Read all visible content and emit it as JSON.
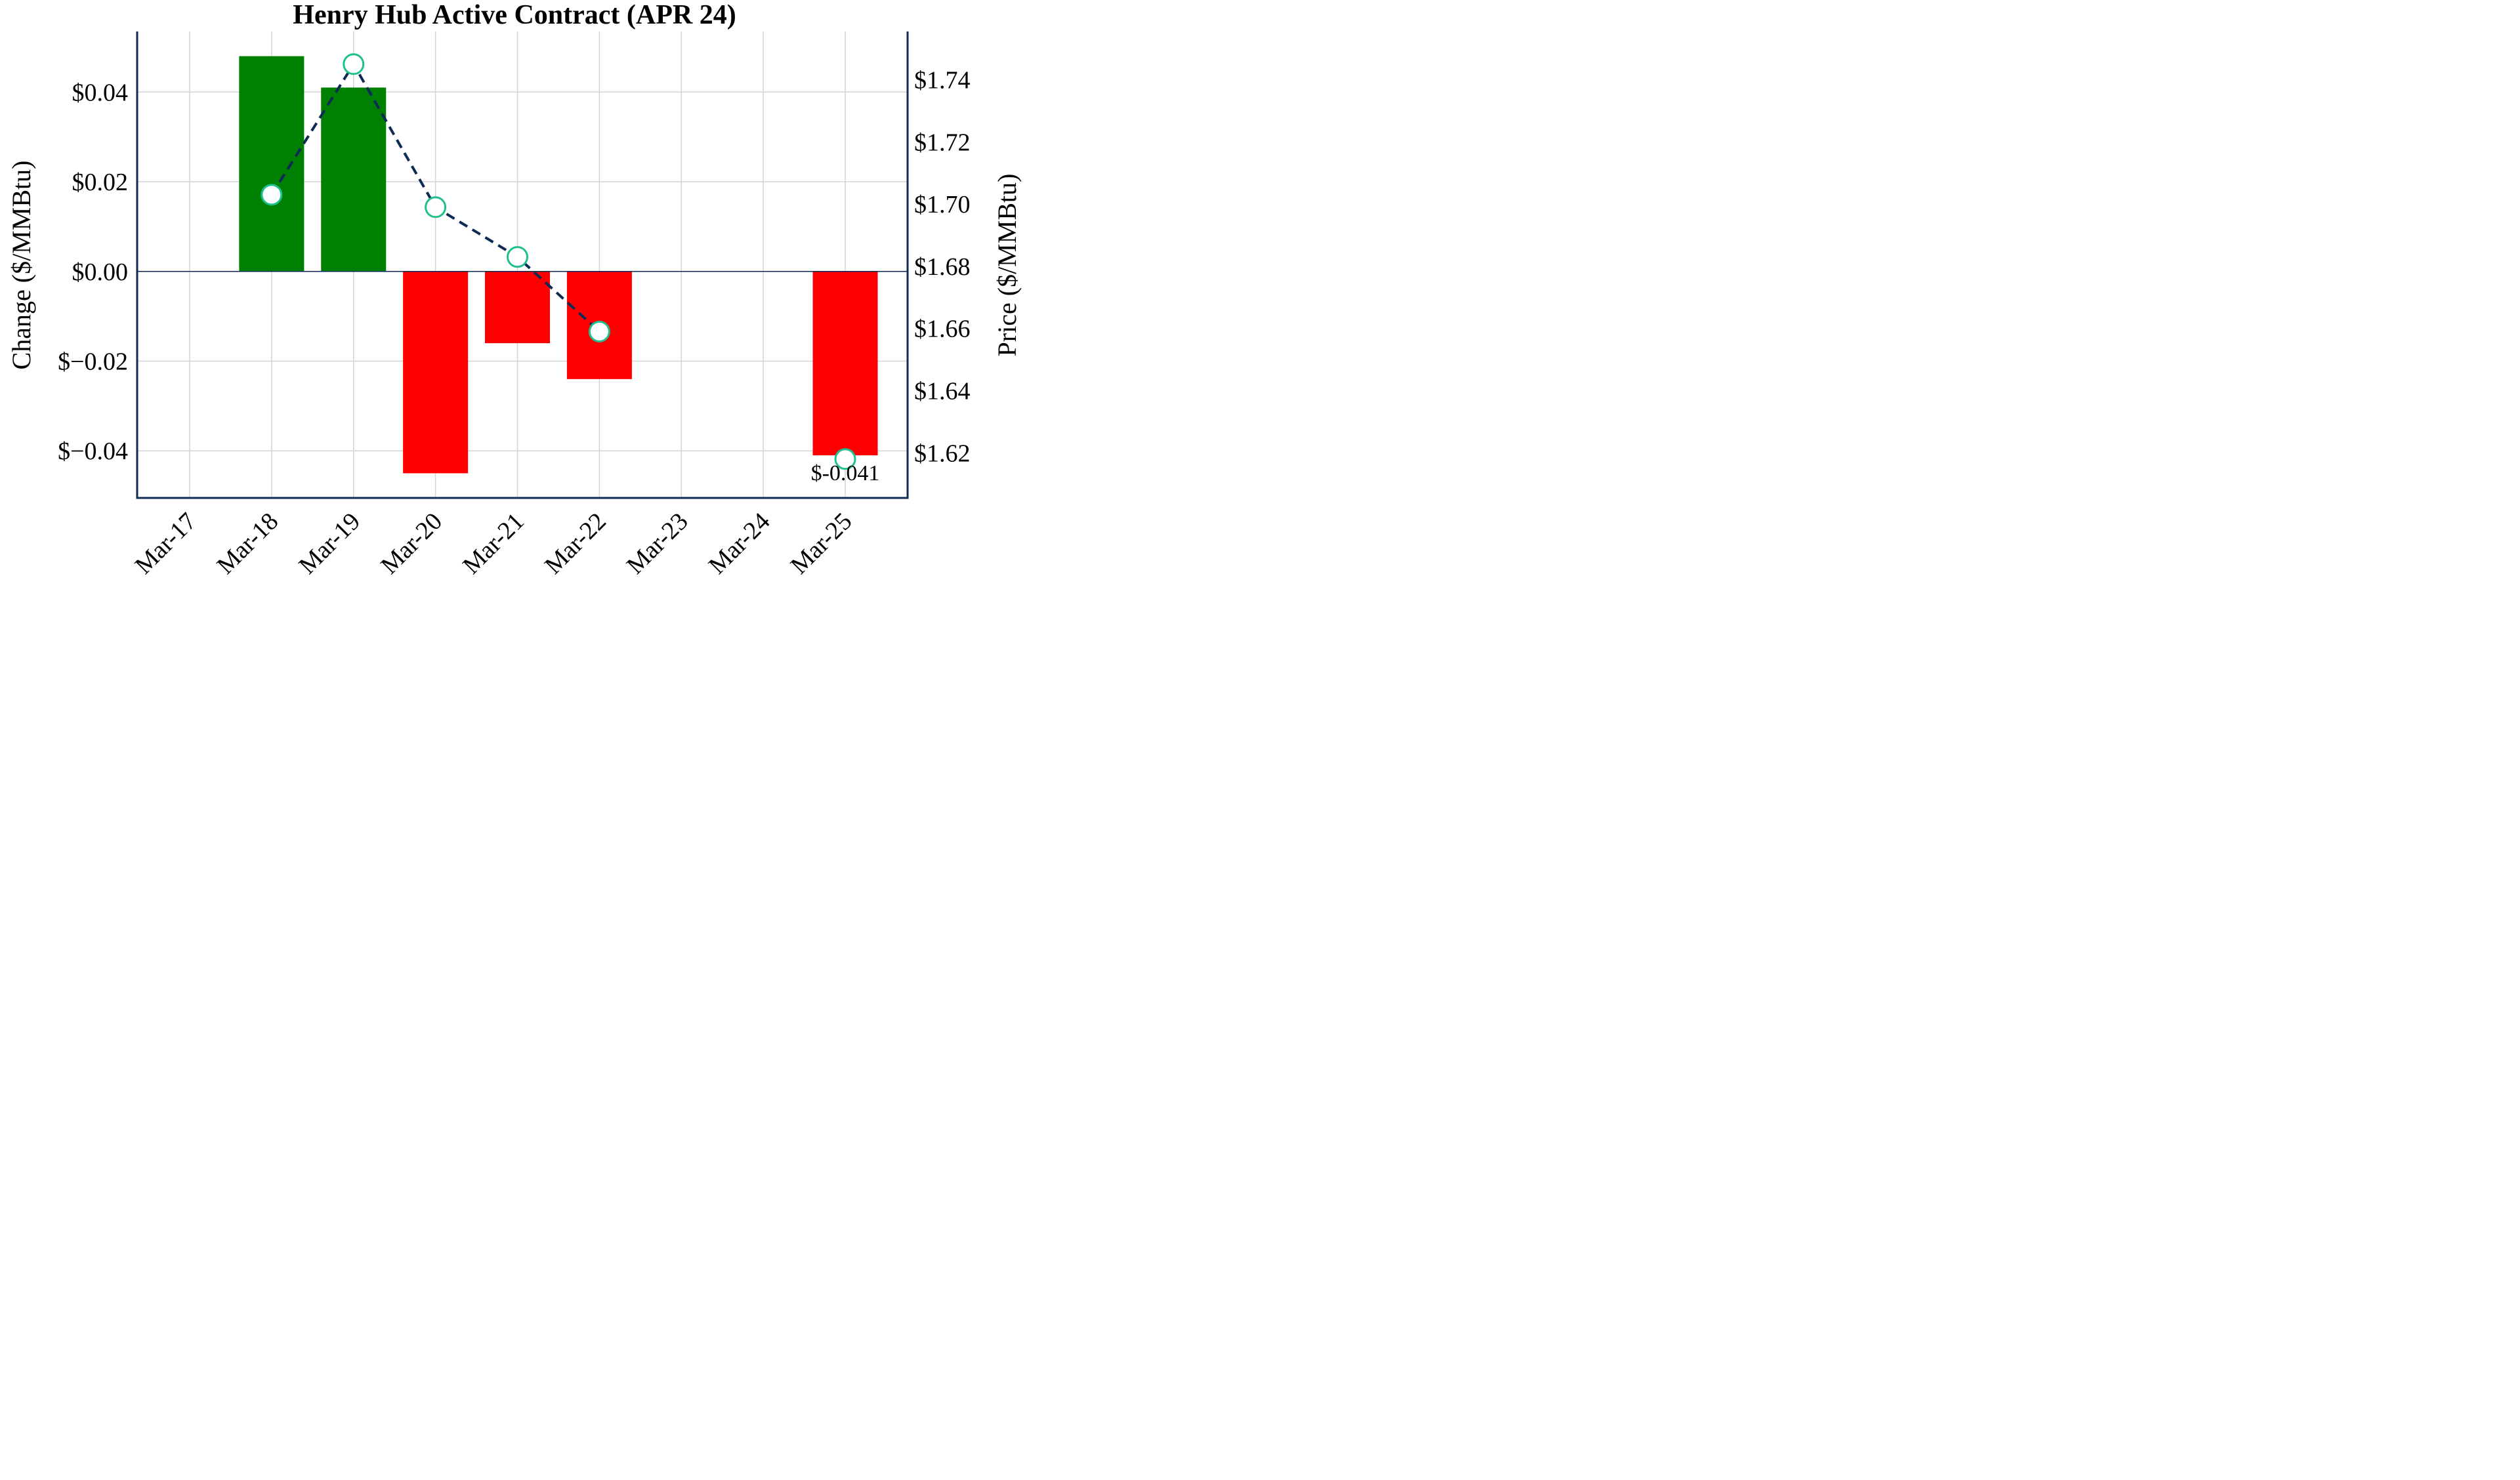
{
  "chart_data": {
    "type": "bar",
    "title": "Henry Hub Active Contract (APR 24)",
    "categories": [
      "Mar-17",
      "Mar-18",
      "Mar-19",
      "Mar-20",
      "Mar-21",
      "Mar-22",
      "Mar-23",
      "Mar-24",
      "Mar-25"
    ],
    "ylabel": "Change ($/MMBtu)",
    "y2label": "Price ($/MMBtu)",
    "ylim": [
      -0.0505,
      0.0535
    ],
    "y2lim": [
      1.6055,
      1.7555
    ],
    "yticks": [
      {
        "value": 0.04,
        "label": "$0.04"
      },
      {
        "value": 0.02,
        "label": "$0.02"
      },
      {
        "value": 0.0,
        "label": "$0.00"
      },
      {
        "value": -0.02,
        "label": "$−0.02"
      },
      {
        "value": -0.04,
        "label": "$−0.04"
      }
    ],
    "y2ticks": [
      {
        "value": 1.74,
        "label": "$1.74"
      },
      {
        "value": 1.72,
        "label": "$1.72"
      },
      {
        "value": 1.7,
        "label": "$1.70"
      },
      {
        "value": 1.68,
        "label": "$1.68"
      },
      {
        "value": 1.66,
        "label": "$1.66"
      },
      {
        "value": 1.64,
        "label": "$1.64"
      },
      {
        "value": 1.62,
        "label": "$1.62"
      }
    ],
    "series": [
      {
        "type": "bar",
        "axis": "left",
        "values": [
          null,
          0.048,
          0.041,
          -0.045,
          -0.016,
          -0.024,
          null,
          null,
          -0.041
        ]
      },
      {
        "type": "line",
        "axis": "right",
        "style": "dashed",
        "values": [
          null,
          1.703,
          1.745,
          1.699,
          1.683,
          1.659,
          null,
          null,
          1.618
        ]
      }
    ],
    "data_labels": [
      {
        "category": "Mar-25",
        "text": "$-0.041"
      }
    ],
    "grid": true,
    "colors": {
      "positive": "#008000",
      "negative": "#ff0000",
      "line": "#0d2b55",
      "marker_edge": "#1fbf8f",
      "marker_fill": "#ffffff",
      "axis": "#0d2b55",
      "zero_line": "#0d2b55"
    }
  }
}
